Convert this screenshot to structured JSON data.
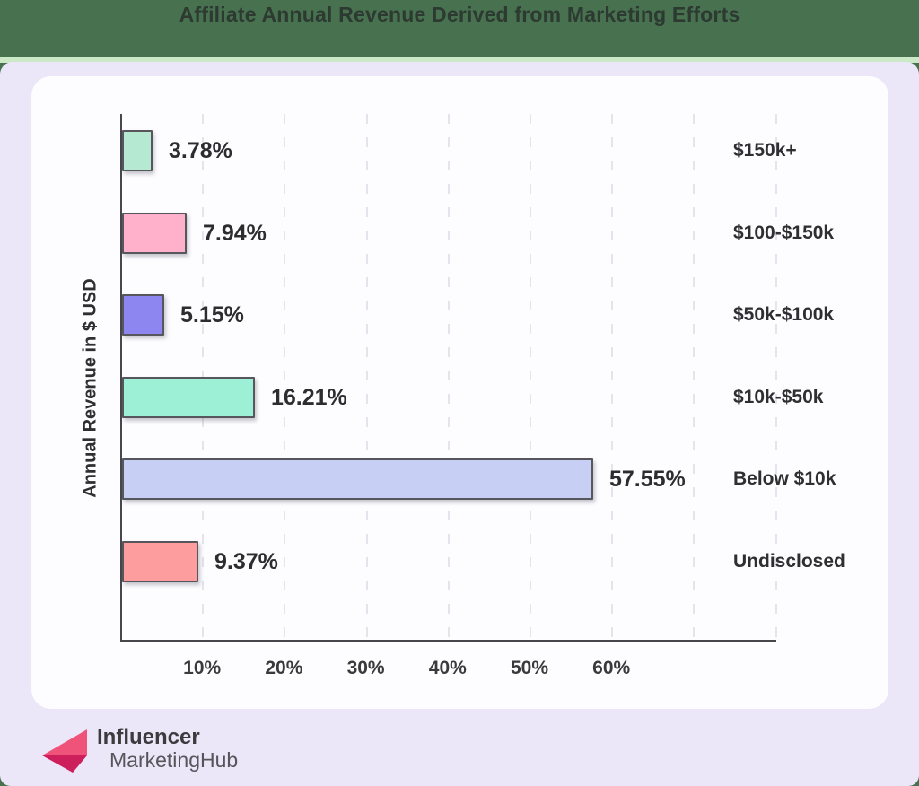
{
  "chart_data": {
    "type": "bar",
    "orientation": "horizontal",
    "title": "Affiliate Annual Revenue Derived from Marketing Efforts",
    "ylabel": "Annual Revenue in $ USD",
    "xlabel": "",
    "categories": [
      "$150k+",
      "$100-$150k",
      "$50k-$100k",
      "$10k-$50k",
      "Below $10k",
      "Undisclosed"
    ],
    "values": [
      3.78,
      7.94,
      5.15,
      16.21,
      57.55,
      9.37
    ],
    "value_labels": [
      "3.78%",
      "7.94%",
      "5.15%",
      "16.21%",
      "57.55%",
      "9.37%"
    ],
    "bar_colors": [
      "#b6e9d1",
      "#ffb1cb",
      "#8e86f0",
      "#9defd5",
      "#c7d0f4",
      "#fd9d9d"
    ],
    "x_ticks": [
      "10%",
      "20%",
      "30%",
      "40%",
      "50%",
      "60%"
    ],
    "xlim": [
      0,
      80
    ],
    "grid": "vertical-dashed",
    "legend": "none"
  },
  "colors": {
    "header_green": "#48714f",
    "strip_green": "#cbe9c6",
    "panel_lavender": "#ece6f9",
    "card_white": "#fdfdff",
    "axis": "#47474d",
    "logo_pink_light": "#ef5379",
    "logo_pink_dark": "#cc1f5b"
  },
  "footer": {
    "brand_line1": "Influencer",
    "brand_line2": "MarketingHub"
  }
}
